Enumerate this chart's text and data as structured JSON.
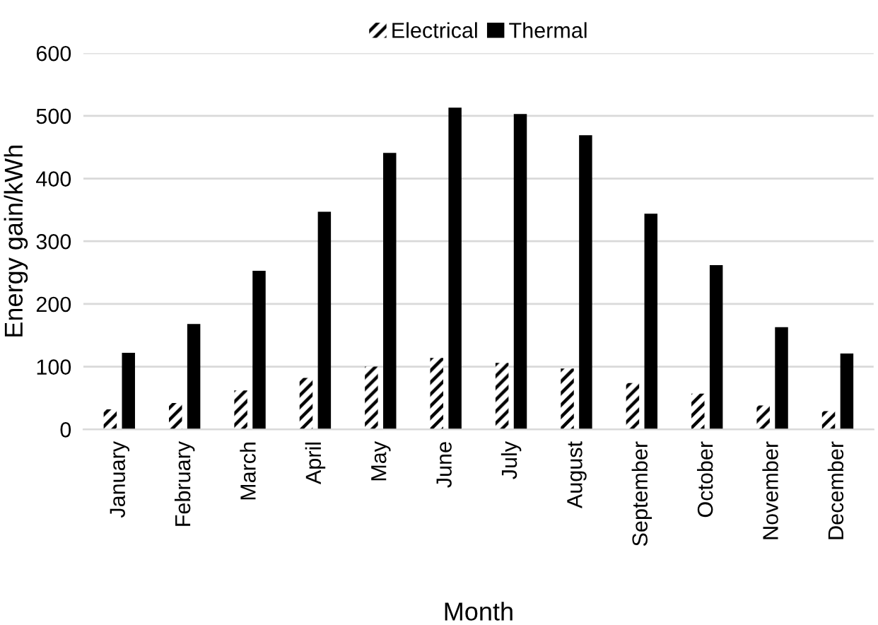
{
  "chart_data": {
    "type": "bar",
    "xlabel": "Month",
    "ylabel": "Energy gain/kWh",
    "categories": [
      "January",
      "February",
      "March",
      "April",
      "May",
      "June",
      "July",
      "August",
      "September",
      "October",
      "November",
      "December"
    ],
    "series": [
      {
        "name": "Electrical",
        "color": "#000000",
        "values": [
          32,
          42,
          62,
          82,
          100,
          114,
          106,
          97,
          74,
          57,
          38,
          29
        ]
      },
      {
        "name": "Thermal",
        "color": "#000000",
        "values": [
          122,
          168,
          253,
          347,
          441,
          513,
          503,
          469,
          344,
          262,
          163,
          121
        ]
      }
    ],
    "ylim": [
      0,
      600
    ],
    "yticks": [
      0,
      100,
      200,
      300,
      400,
      500,
      600
    ],
    "grid": "y",
    "legend": "top"
  }
}
